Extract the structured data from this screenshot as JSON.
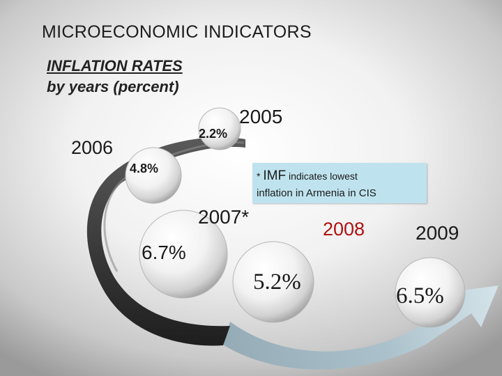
{
  "slide": {
    "title": "MICROECONOMIC INDICATORS",
    "subtitle_line1": "INFLATION RATES",
    "subtitle_line2": "by years (percent)"
  },
  "chart_data": {
    "type": "table",
    "categories": [
      "2005",
      "2006",
      "2007*",
      "2008",
      "2009"
    ],
    "values": [
      2.2,
      4.8,
      6.7,
      5.2,
      6.5
    ],
    "value_labels": [
      "2.2%",
      "4.8%",
      "6.7%",
      "5.2%",
      "6.5%"
    ],
    "unit": "percent"
  },
  "note": {
    "asterisk": "*",
    "prefix": "IMF",
    "line1": "indicates lowest",
    "line2": "inflation in Armenia in CIS",
    "background": "#bfe3ee"
  },
  "colors": {
    "year_2008": "#b01010",
    "arrow": "#9fb8c4",
    "track": "#3a3a3a"
  }
}
